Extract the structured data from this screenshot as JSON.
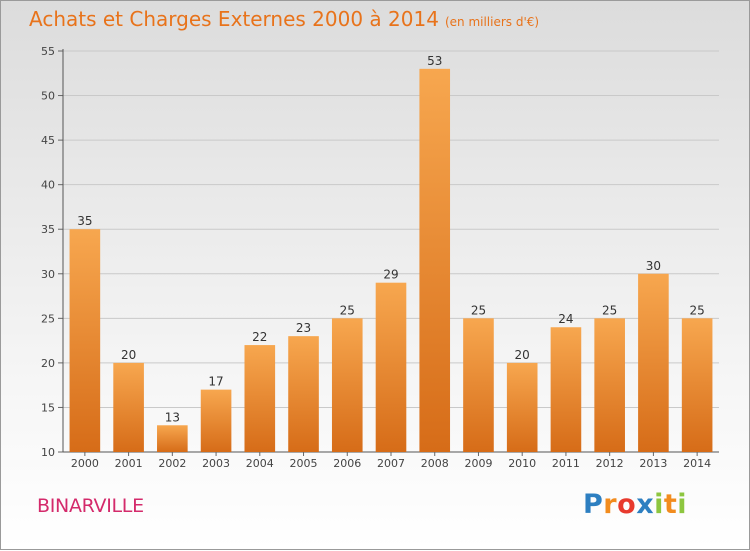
{
  "title": "Achats et Charges Externes 2000 à 2014",
  "unit": "(en milliers d'€)",
  "commune": "BINARVILLE",
  "logo": {
    "letters": [
      "P",
      "r",
      "o",
      "x",
      "i",
      "t",
      "i"
    ],
    "colors": [
      "#2d7fc1",
      "#f28c1e",
      "#e83a2e",
      "#2d7fc1",
      "#8dc63f",
      "#f28c1e",
      "#8dc63f"
    ]
  },
  "colors": {
    "title": "#e8731b",
    "commune": "#d42a6b",
    "bar_top": "#f7a74f",
    "bar_bottom": "#d66c18"
  },
  "chart_data": {
    "type": "bar",
    "categories": [
      "2000",
      "2001",
      "2002",
      "2003",
      "2004",
      "2005",
      "2006",
      "2007",
      "2008",
      "2009",
      "2010",
      "2011",
      "2012",
      "2013",
      "2014"
    ],
    "values": [
      35,
      20,
      13,
      17,
      22,
      23,
      25,
      29,
      53,
      25,
      20,
      24,
      25,
      30,
      25
    ],
    "ylim": [
      10,
      55
    ],
    "yticks": [
      10,
      15,
      20,
      25,
      30,
      35,
      40,
      45,
      50,
      55
    ],
    "grid": true,
    "data_labels": true
  }
}
